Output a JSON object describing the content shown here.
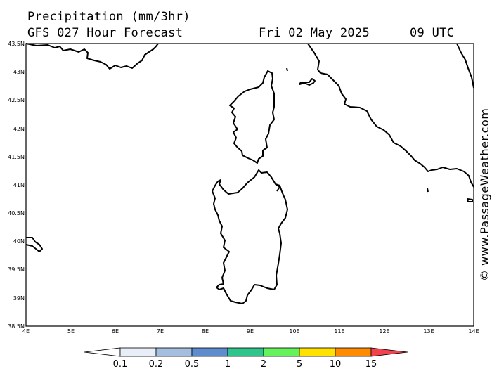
{
  "header": {
    "title": "Precipitation (mm/3hr)",
    "model": "GFS 027 Hour Forecast",
    "date": "Fri 02 May 2025",
    "time": "09 UTC"
  },
  "credit": "© www.PassageWeather.com",
  "map": {
    "lat_labels": [
      "43.5N",
      "43N",
      "42.5N",
      "42N",
      "41.5N",
      "41N",
      "40.5N",
      "40N",
      "39.5N",
      "39N",
      "38.5N"
    ],
    "lon_labels": [
      "4E",
      "5E",
      "6E",
      "7E",
      "8E",
      "9E",
      "10E",
      "11E",
      "12E",
      "13E",
      "14E"
    ],
    "coastline_color": "#000000"
  },
  "legend": {
    "labels": [
      "0.1",
      "0.2",
      "0.5",
      "1",
      "2",
      "5",
      "10",
      "15"
    ],
    "colors": [
      "#ffffff",
      "#e8eef8",
      "#a4bedf",
      "#5f8ccc",
      "#2ec48b",
      "#66f25a",
      "#ffe100",
      "#ff8c00",
      "#f2424d"
    ]
  }
}
